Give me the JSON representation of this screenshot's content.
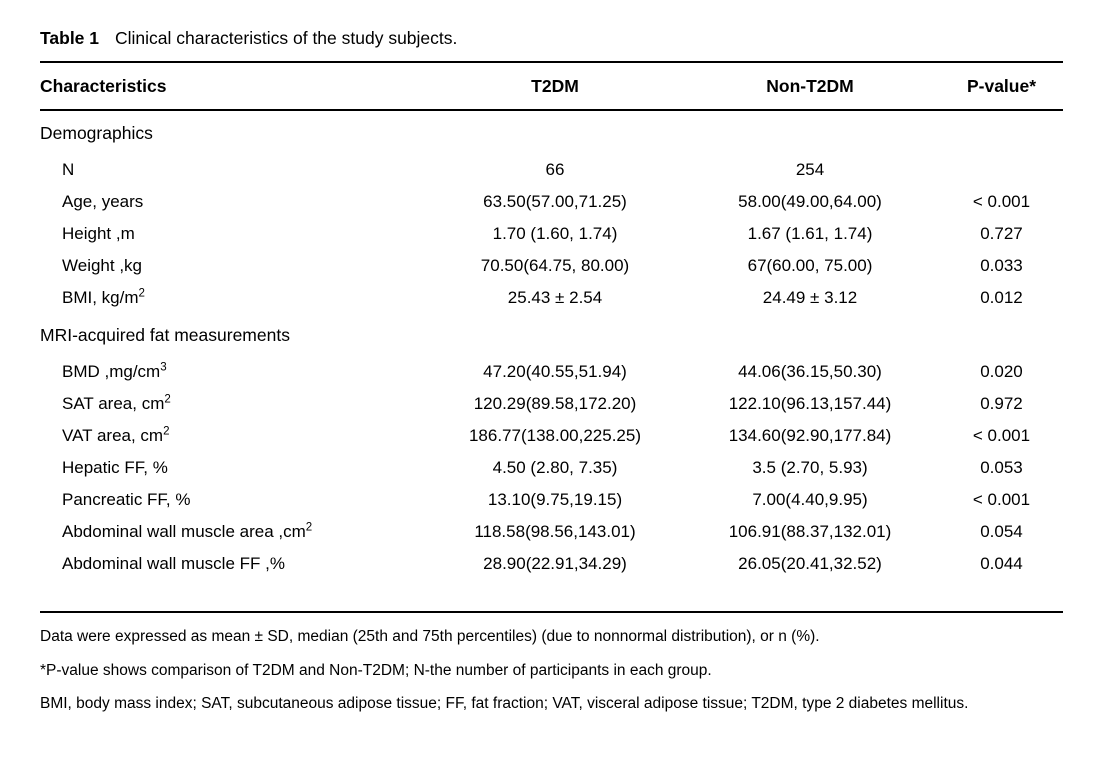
{
  "title": {
    "bold": "Table 1",
    "rest": "Clinical characteristics of the study subjects."
  },
  "table": {
    "columns": [
      "Characteristics",
      "T2DM",
      "Non-T2DM",
      "P-value*"
    ],
    "rows": [
      {
        "type": "section",
        "label": "Demographics"
      },
      {
        "type": "data",
        "label": "N",
        "t2dm": "66",
        "non_t2dm": "254",
        "p_value": ""
      },
      {
        "type": "data",
        "label": "Age, years",
        "t2dm": "63.50(57.00,71.25)",
        "non_t2dm": "58.00(49.00,64.00)",
        "p_value": "< 0.001"
      },
      {
        "type": "data",
        "label": "Height ,m",
        "t2dm": "1.70 (1.60, 1.74)",
        "non_t2dm": "1.67 (1.61, 1.74)",
        "p_value": "0.727"
      },
      {
        "type": "data",
        "label": "Weight ,kg",
        "t2dm": "70.50(64.75, 80.00)",
        "non_t2dm": "67(60.00, 75.00)",
        "p_value": "0.033"
      },
      {
        "type": "data",
        "label": "BMI, kg/m",
        "sup": "2",
        "t2dm": "25.43 ± 2.54",
        "non_t2dm": "24.49 ± 3.12",
        "p_value": "0.012"
      },
      {
        "type": "section",
        "label": "MRI-acquired fat measurements"
      },
      {
        "type": "data",
        "label": "BMD ,mg/cm",
        "sup": "3",
        "t2dm": "47.20(40.55,51.94)",
        "non_t2dm": "44.06(36.15,50.30)",
        "p_value": "0.020"
      },
      {
        "type": "data",
        "label": "SAT area, cm",
        "sup": "2",
        "t2dm": "120.29(89.58,172.20)",
        "non_t2dm": "122.10(96.13,157.44)",
        "p_value": "0.972"
      },
      {
        "type": "data",
        "label": "VAT area, cm",
        "sup": "2",
        "t2dm": "186.77(138.00,225.25)",
        "non_t2dm": "134.60(92.90,177.84)",
        "p_value": "< 0.001"
      },
      {
        "type": "data",
        "label": "Hepatic FF, %",
        "t2dm": "4.50 (2.80, 7.35)",
        "non_t2dm": "3.5 (2.70, 5.93)",
        "p_value": "0.053"
      },
      {
        "type": "data",
        "label": "Pancreatic FF, %",
        "t2dm": "13.10(9.75,19.15)",
        "non_t2dm": "7.00(4.40,9.95)",
        "p_value": "< 0.001"
      },
      {
        "type": "data",
        "label": "Abdominal wall muscle area ,cm",
        "sup": "2",
        "t2dm": "118.58(98.56,143.01)",
        "non_t2dm": "106.91(88.37,132.01)",
        "p_value": "0.054"
      },
      {
        "type": "data",
        "label": "Abdominal wall muscle FF ,%",
        "t2dm": "28.90(22.91,34.29)",
        "non_t2dm": "26.05(20.41,32.52)",
        "p_value": "0.044"
      }
    ]
  },
  "footnotes": [
    "Data were expressed as mean ± SD, median (25th and 75th percentiles) (due to nonnormal distribution), or n (%).",
    "*P-value shows comparison of T2DM and Non-T2DM; N-the number of participants in each group.",
    "BMI, body mass index; SAT, subcutaneous adipose tissue; FF, fat fraction; VAT, visceral adipose tissue; T2DM, type 2 diabetes mellitus."
  ]
}
